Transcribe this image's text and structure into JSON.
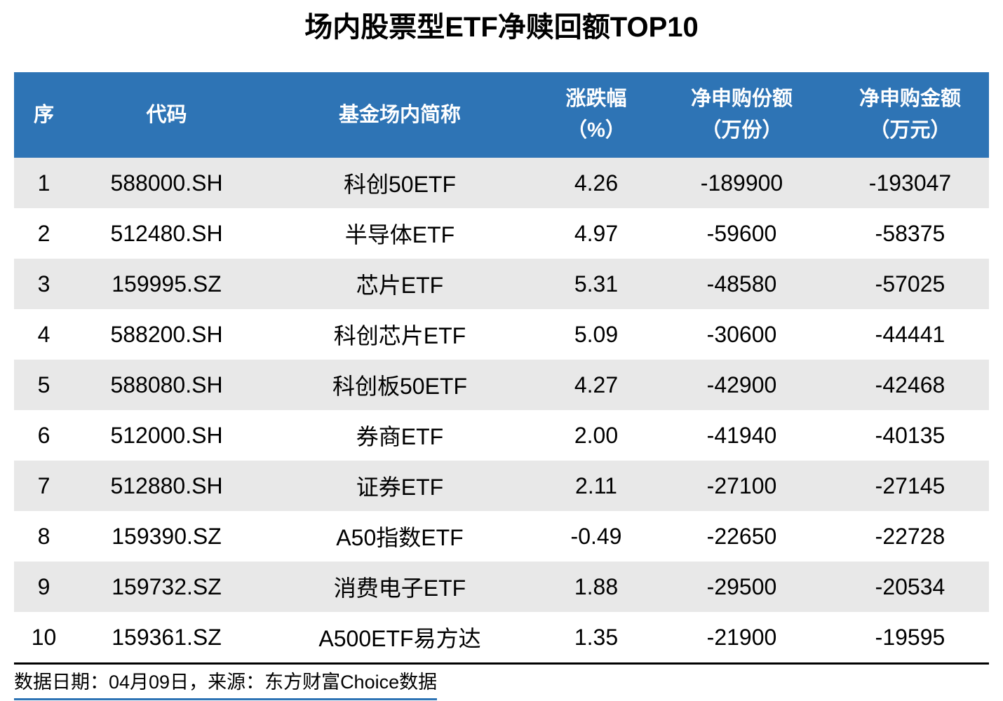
{
  "chart_data": {
    "type": "table",
    "title": "场内股票型ETF净赎回额TOP10",
    "columns": [
      {
        "key": "rank",
        "line1": "序",
        "line2": ""
      },
      {
        "key": "code",
        "line1": "代码",
        "line2": ""
      },
      {
        "key": "name",
        "line1": "基金场内简称",
        "line2": ""
      },
      {
        "key": "chg",
        "line1": "涨跌幅",
        "line2": "（%）"
      },
      {
        "key": "shares",
        "line1": "净申购份额",
        "line2": "（万份）"
      },
      {
        "key": "amount",
        "line1": "净申购金额",
        "line2": "（万元）"
      }
    ],
    "rows": [
      [
        "1",
        "588000.SH",
        "科创50ETF",
        "4.26",
        "-189900",
        "-193047"
      ],
      [
        "2",
        "512480.SH",
        "半导体ETF",
        "4.97",
        "-59600",
        "-58375"
      ],
      [
        "3",
        "159995.SZ",
        "芯片ETF",
        "5.31",
        "-48580",
        "-57025"
      ],
      [
        "4",
        "588200.SH",
        "科创芯片ETF",
        "5.09",
        "-30600",
        "-44441"
      ],
      [
        "5",
        "588080.SH",
        "科创板50ETF",
        "4.27",
        "-42900",
        "-42468"
      ],
      [
        "6",
        "512000.SH",
        "券商ETF",
        "2.00",
        "-41940",
        "-40135"
      ],
      [
        "7",
        "512880.SH",
        "证券ETF",
        "2.11",
        "-27100",
        "-27145"
      ],
      [
        "8",
        "159390.SZ",
        "A50指数ETF",
        "-0.49",
        "-22650",
        "-22728"
      ],
      [
        "9",
        "159732.SZ",
        "消费电子ETF",
        "1.88",
        "-29500",
        "-20534"
      ],
      [
        "10",
        "159361.SZ",
        "A500ETF易方达",
        "1.35",
        "-21900",
        "-19595"
      ]
    ],
    "layout": {
      "header_rows": 1,
      "data_rows": 10,
      "zebra_striping": "odd-rows-gray"
    }
  },
  "footer": {
    "source_note": "数据日期：04月09日，来源：东方财富Choice数据"
  },
  "colors": {
    "header_bg": "#2E74B5",
    "header_text": "#FFFFFF",
    "row_alt_bg": "#E8E8E8",
    "body_text": "#000000",
    "divider_line": "#000000",
    "accent_underline": "#2E74B5"
  }
}
